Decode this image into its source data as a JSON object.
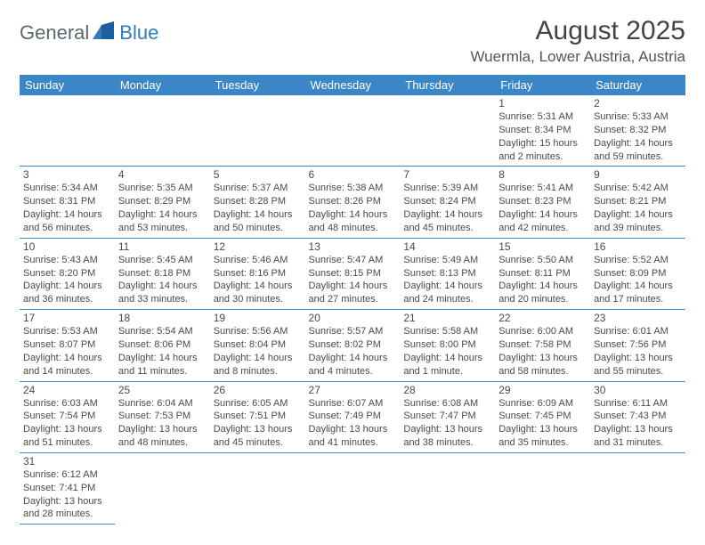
{
  "logo": {
    "part1": "General",
    "part2": "Blue"
  },
  "header": {
    "title": "August 2025",
    "location": "Wuermla, Lower Austria, Austria"
  },
  "colors": {
    "header_bg": "#3b86c6",
    "header_text": "#ffffff",
    "border": "#3b86c6",
    "logo_gray": "#5c6770",
    "logo_blue": "#2f7dc0"
  },
  "weekdays": [
    "Sunday",
    "Monday",
    "Tuesday",
    "Wednesday",
    "Thursday",
    "Friday",
    "Saturday"
  ],
  "weeks": [
    [
      null,
      null,
      null,
      null,
      null,
      {
        "n": "1",
        "sunrise": "5:31 AM",
        "sunset": "8:34 PM",
        "daylight": "15 hours and 2 minutes."
      },
      {
        "n": "2",
        "sunrise": "5:33 AM",
        "sunset": "8:32 PM",
        "daylight": "14 hours and 59 minutes."
      }
    ],
    [
      {
        "n": "3",
        "sunrise": "5:34 AM",
        "sunset": "8:31 PM",
        "daylight": "14 hours and 56 minutes."
      },
      {
        "n": "4",
        "sunrise": "5:35 AM",
        "sunset": "8:29 PM",
        "daylight": "14 hours and 53 minutes."
      },
      {
        "n": "5",
        "sunrise": "5:37 AM",
        "sunset": "8:28 PM",
        "daylight": "14 hours and 50 minutes."
      },
      {
        "n": "6",
        "sunrise": "5:38 AM",
        "sunset": "8:26 PM",
        "daylight": "14 hours and 48 minutes."
      },
      {
        "n": "7",
        "sunrise": "5:39 AM",
        "sunset": "8:24 PM",
        "daylight": "14 hours and 45 minutes."
      },
      {
        "n": "8",
        "sunrise": "5:41 AM",
        "sunset": "8:23 PM",
        "daylight": "14 hours and 42 minutes."
      },
      {
        "n": "9",
        "sunrise": "5:42 AM",
        "sunset": "8:21 PM",
        "daylight": "14 hours and 39 minutes."
      }
    ],
    [
      {
        "n": "10",
        "sunrise": "5:43 AM",
        "sunset": "8:20 PM",
        "daylight": "14 hours and 36 minutes."
      },
      {
        "n": "11",
        "sunrise": "5:45 AM",
        "sunset": "8:18 PM",
        "daylight": "14 hours and 33 minutes."
      },
      {
        "n": "12",
        "sunrise": "5:46 AM",
        "sunset": "8:16 PM",
        "daylight": "14 hours and 30 minutes."
      },
      {
        "n": "13",
        "sunrise": "5:47 AM",
        "sunset": "8:15 PM",
        "daylight": "14 hours and 27 minutes."
      },
      {
        "n": "14",
        "sunrise": "5:49 AM",
        "sunset": "8:13 PM",
        "daylight": "14 hours and 24 minutes."
      },
      {
        "n": "15",
        "sunrise": "5:50 AM",
        "sunset": "8:11 PM",
        "daylight": "14 hours and 20 minutes."
      },
      {
        "n": "16",
        "sunrise": "5:52 AM",
        "sunset": "8:09 PM",
        "daylight": "14 hours and 17 minutes."
      }
    ],
    [
      {
        "n": "17",
        "sunrise": "5:53 AM",
        "sunset": "8:07 PM",
        "daylight": "14 hours and 14 minutes."
      },
      {
        "n": "18",
        "sunrise": "5:54 AM",
        "sunset": "8:06 PM",
        "daylight": "14 hours and 11 minutes."
      },
      {
        "n": "19",
        "sunrise": "5:56 AM",
        "sunset": "8:04 PM",
        "daylight": "14 hours and 8 minutes."
      },
      {
        "n": "20",
        "sunrise": "5:57 AM",
        "sunset": "8:02 PM",
        "daylight": "14 hours and 4 minutes."
      },
      {
        "n": "21",
        "sunrise": "5:58 AM",
        "sunset": "8:00 PM",
        "daylight": "14 hours and 1 minute."
      },
      {
        "n": "22",
        "sunrise": "6:00 AM",
        "sunset": "7:58 PM",
        "daylight": "13 hours and 58 minutes."
      },
      {
        "n": "23",
        "sunrise": "6:01 AM",
        "sunset": "7:56 PM",
        "daylight": "13 hours and 55 minutes."
      }
    ],
    [
      {
        "n": "24",
        "sunrise": "6:03 AM",
        "sunset": "7:54 PM",
        "daylight": "13 hours and 51 minutes."
      },
      {
        "n": "25",
        "sunrise": "6:04 AM",
        "sunset": "7:53 PM",
        "daylight": "13 hours and 48 minutes."
      },
      {
        "n": "26",
        "sunrise": "6:05 AM",
        "sunset": "7:51 PM",
        "daylight": "13 hours and 45 minutes."
      },
      {
        "n": "27",
        "sunrise": "6:07 AM",
        "sunset": "7:49 PM",
        "daylight": "13 hours and 41 minutes."
      },
      {
        "n": "28",
        "sunrise": "6:08 AM",
        "sunset": "7:47 PM",
        "daylight": "13 hours and 38 minutes."
      },
      {
        "n": "29",
        "sunrise": "6:09 AM",
        "sunset": "7:45 PM",
        "daylight": "13 hours and 35 minutes."
      },
      {
        "n": "30",
        "sunrise": "6:11 AM",
        "sunset": "7:43 PM",
        "daylight": "13 hours and 31 minutes."
      }
    ],
    [
      {
        "n": "31",
        "sunrise": "6:12 AM",
        "sunset": "7:41 PM",
        "daylight": "13 hours and 28 minutes."
      },
      null,
      null,
      null,
      null,
      null,
      null
    ]
  ],
  "labels": {
    "sunrise": "Sunrise: ",
    "sunset": "Sunset: ",
    "daylight": "Daylight: "
  }
}
